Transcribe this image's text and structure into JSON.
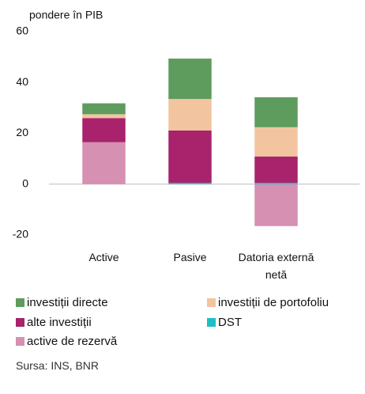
{
  "chart_data": {
    "type": "stacked_bar",
    "y_label": "pondere în PIB",
    "categories": [
      "Active",
      "Pasive",
      "Datoria externă netă"
    ],
    "series": [
      {
        "name": "investiții directe",
        "color": "#5e9c5e",
        "values": [
          4.3,
          15.9,
          11.8
        ]
      },
      {
        "name": "investiții de portofoliu",
        "color": "#f2c5a0",
        "values": [
          1.5,
          12.4,
          11.5
        ]
      },
      {
        "name": "alte investiții",
        "color": "#a8226c",
        "values": [
          9.5,
          20.6,
          10.4
        ]
      },
      {
        "name": "DST",
        "color": "#1dbfc6",
        "values": [
          0,
          0.5,
          0.5
        ]
      },
      {
        "name": "active de rezervă",
        "color": "#d590b2",
        "values": [
          16.5,
          0,
          -16.5
        ]
      }
    ],
    "stack_order": [
      4,
      3,
      2,
      1,
      0
    ],
    "ylim": [
      -20,
      60
    ],
    "yticks": [
      -20,
      0,
      20,
      40,
      60
    ],
    "source": "Sursa: INS, BNR"
  }
}
